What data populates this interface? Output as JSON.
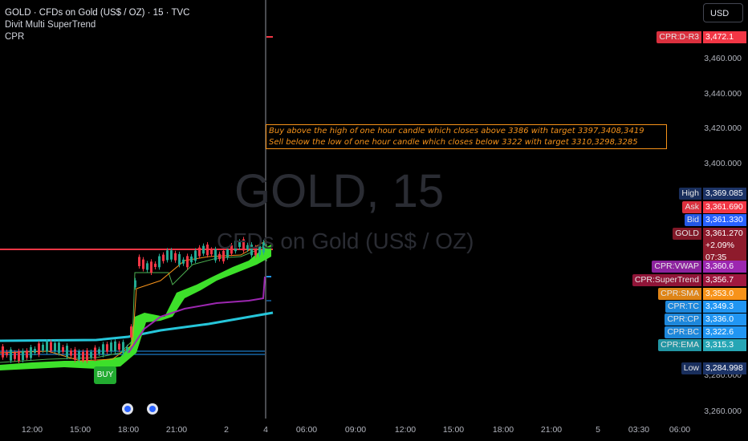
{
  "header": {
    "title": "GOLD · CFDs on Gold (US$ / OZ) · 15 · TVC",
    "indicators": [
      "Divit Multi SuperTrend",
      "CPR"
    ]
  },
  "currency_button": "USD",
  "watermark": {
    "symbol": "GOLD, 15",
    "description": "CFDs on Gold (US$ / OZ)"
  },
  "annotation": {
    "lines": [
      "Buy above the high of one hour candle which closes above 3386 with target 3397,3408,3419",
      "Sell below the low of one hour candle which closes below 3322 with target 3310,3298,3285"
    ]
  },
  "signal_label": "BUY",
  "price_axis": {
    "labels": [
      "3,460.000",
      "3,440.000",
      "3,420.000",
      "3,400.000",
      "3,280.000",
      "3,260.000"
    ]
  },
  "time_axis": {
    "labels": [
      "12:00",
      "15:00",
      "18:00",
      "21:00",
      "2",
      "4",
      "06:00",
      "09:00",
      "12:00",
      "15:00",
      "18:00",
      "21:00",
      "5",
      "03:30",
      "06:00"
    ]
  },
  "price_badges": [
    {
      "label": "CPR:D-R3",
      "value": "3,472.1",
      "color": "#f23645"
    },
    {
      "label": "High",
      "value": "3,369.085",
      "color": "#1c3366"
    },
    {
      "label": "Ask",
      "value": "3,361.690",
      "color": "#f23645"
    },
    {
      "label": "Bid",
      "value": "3,361.330",
      "color": "#2962ff"
    },
    {
      "label": "GOLD",
      "value": "3,361.270",
      "change": "+2.09%",
      "countdown": "07:35",
      "color": "#8e1b2c"
    },
    {
      "label": "CPR:VWAP",
      "value": "3,360.6",
      "color": "#9c27b0"
    },
    {
      "label": "CPR:SuperTrend",
      "value": "3,356.7",
      "color": "#a0183f"
    },
    {
      "label": "CPR:SMA",
      "value": "3,353.0",
      "color": "#f7931a"
    },
    {
      "label": "CPR:TC",
      "value": "3,349.3",
      "color": "#2196f3"
    },
    {
      "label": "CPR:CP",
      "value": "3,336.0",
      "color": "#2196f3"
    },
    {
      "label": "CPR:BC",
      "value": "3,322.6",
      "color": "#2196f3"
    },
    {
      "label": "CPR:EMA",
      "value": "3,315.3",
      "color": "#26a6b5"
    },
    {
      "label": "Low",
      "value": "3,284.998",
      "color": "#1c3366"
    }
  ]
}
